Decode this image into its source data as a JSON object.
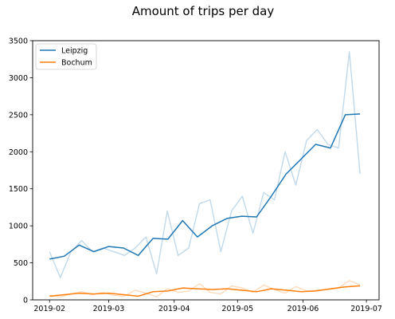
{
  "chart_data": {
    "type": "line",
    "title": "Amount of trips per day",
    "xlabel": "",
    "ylabel": "",
    "xlim": [
      "2019-01-24",
      "2019-07-07"
    ],
    "ylim": [
      0,
      3500
    ],
    "x_ticks": [
      "2019-02-01",
      "2019-03-01",
      "2019-04-01",
      "2019-05-01",
      "2019-06-01",
      "2019-07-01"
    ],
    "x_tick_labels": [
      "2019-02",
      "2019-03",
      "2019-04",
      "2019-05",
      "2019-06",
      "2019-07"
    ],
    "y_ticks": [
      0,
      500,
      1000,
      1500,
      2000,
      2500,
      3000,
      3500
    ],
    "y_tick_labels": [
      "0",
      "500",
      "1000",
      "1500",
      "2000",
      "2500",
      "3000",
      "3500"
    ],
    "grid": false,
    "legend_position": "top-left",
    "series": [
      {
        "name": "Leipzig",
        "color": "#1f77b4",
        "x": [
          "2019-02-01",
          "2019-02-08",
          "2019-02-15",
          "2019-02-22",
          "2019-03-01",
          "2019-03-08",
          "2019-03-15",
          "2019-03-22",
          "2019-03-29",
          "2019-04-05",
          "2019-04-12",
          "2019-04-19",
          "2019-04-26",
          "2019-05-03",
          "2019-05-10",
          "2019-05-17",
          "2019-05-24",
          "2019-05-31",
          "2019-06-07",
          "2019-06-14",
          "2019-06-21",
          "2019-06-28"
        ],
        "smoothed": [
          550,
          590,
          740,
          650,
          720,
          700,
          600,
          830,
          820,
          1070,
          850,
          1000,
          1100,
          1130,
          1120,
          1400,
          1700,
          1900,
          2100,
          2050,
          2500,
          2510
        ],
        "daily": [
          650,
          300,
          650,
          800,
          650,
          700,
          650,
          600,
          700,
          850,
          350,
          1200,
          600,
          700,
          1300,
          1350,
          650,
          1200,
          1400,
          900,
          1450,
          1350,
          2000,
          1550,
          2150,
          2300,
          2100,
          2050,
          3350,
          1700
        ]
      },
      {
        "name": "Bochum",
        "color": "#ff7f0e",
        "x": [
          "2019-02-01",
          "2019-02-08",
          "2019-02-15",
          "2019-02-22",
          "2019-03-01",
          "2019-03-08",
          "2019-03-15",
          "2019-03-22",
          "2019-03-29",
          "2019-04-05",
          "2019-04-12",
          "2019-04-19",
          "2019-04-26",
          "2019-05-03",
          "2019-05-10",
          "2019-05-17",
          "2019-05-24",
          "2019-05-31",
          "2019-06-07",
          "2019-06-14",
          "2019-06-21",
          "2019-06-28"
        ],
        "smoothed": [
          50,
          70,
          90,
          80,
          90,
          70,
          50,
          110,
          120,
          160,
          150,
          140,
          150,
          130,
          110,
          150,
          130,
          110,
          120,
          150,
          175,
          190
        ],
        "daily": [
          60,
          40,
          80,
          110,
          70,
          100,
          60,
          50,
          130,
          90,
          40,
          150,
          100,
          120,
          220,
          100,
          80,
          190,
          160,
          100,
          200,
          140,
          90,
          180,
          120,
          130,
          140,
          160,
          260,
          200
        ]
      }
    ]
  }
}
